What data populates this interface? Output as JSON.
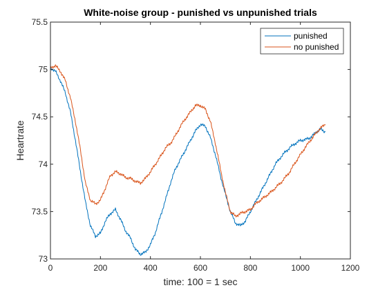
{
  "chart_data": {
    "type": "line",
    "title": "White-noise group - punished vs unpunished trials",
    "xlabel": "time: 100 = 1 sec",
    "ylabel": "Heartrate",
    "xlim": [
      0,
      1200
    ],
    "ylim": [
      73,
      75.5
    ],
    "xticks": [
      "0",
      "200",
      "400",
      "600",
      "800",
      "1000",
      "1200"
    ],
    "yticks": [
      "73",
      "73.5",
      "74",
      "74.5",
      "75",
      "75.5"
    ],
    "grid": false,
    "legend_position": "top-right",
    "series": [
      {
        "name": "punished",
        "color": "#0072BD",
        "x": [
          0,
          20,
          40,
          60,
          80,
          100,
          120,
          140,
          160,
          180,
          200,
          220,
          240,
          260,
          280,
          300,
          320,
          340,
          360,
          380,
          400,
          420,
          440,
          460,
          480,
          500,
          520,
          540,
          560,
          580,
          600,
          620,
          640,
          660,
          680,
          700,
          720,
          740,
          760,
          780,
          800,
          820,
          840,
          860,
          880,
          900,
          920,
          940,
          960,
          980,
          1000,
          1020,
          1040,
          1060,
          1080,
          1100
        ],
        "y": [
          75.02,
          74.98,
          74.88,
          74.75,
          74.55,
          74.25,
          73.92,
          73.6,
          73.35,
          73.24,
          73.27,
          73.4,
          73.48,
          73.52,
          73.42,
          73.3,
          73.22,
          73.1,
          73.05,
          73.07,
          73.15,
          73.28,
          73.45,
          73.62,
          73.8,
          73.95,
          74.05,
          74.15,
          74.25,
          74.35,
          74.42,
          74.4,
          74.28,
          74.1,
          73.88,
          73.68,
          73.5,
          73.38,
          73.35,
          73.4,
          73.5,
          73.6,
          73.7,
          73.8,
          73.9,
          74.0,
          74.07,
          74.13,
          74.18,
          74.22,
          74.25,
          74.26,
          74.28,
          74.33,
          74.37,
          74.34
        ]
      },
      {
        "name": "no punished",
        "color": "#D95319",
        "x": [
          0,
          20,
          40,
          60,
          80,
          100,
          120,
          140,
          160,
          180,
          200,
          220,
          240,
          260,
          280,
          300,
          320,
          340,
          360,
          380,
          400,
          420,
          440,
          460,
          480,
          500,
          520,
          540,
          560,
          580,
          600,
          620,
          640,
          660,
          680,
          700,
          720,
          740,
          760,
          780,
          800,
          820,
          840,
          860,
          880,
          900,
          920,
          940,
          960,
          980,
          1000,
          1020,
          1040,
          1060,
          1080,
          1100
        ],
        "y": [
          75.02,
          75.04,
          74.98,
          74.88,
          74.7,
          74.45,
          74.15,
          73.8,
          73.62,
          73.58,
          73.62,
          73.75,
          73.88,
          73.92,
          73.9,
          73.86,
          73.85,
          73.82,
          73.8,
          73.85,
          73.92,
          74.0,
          74.08,
          74.17,
          74.22,
          74.3,
          74.4,
          74.48,
          74.55,
          74.62,
          74.62,
          74.58,
          74.45,
          74.22,
          73.95,
          73.7,
          73.5,
          73.45,
          73.48,
          73.5,
          73.52,
          73.58,
          73.62,
          73.66,
          73.7,
          73.75,
          73.8,
          73.86,
          73.93,
          74.02,
          74.1,
          74.18,
          74.25,
          74.32,
          74.38,
          74.42
        ]
      }
    ]
  }
}
